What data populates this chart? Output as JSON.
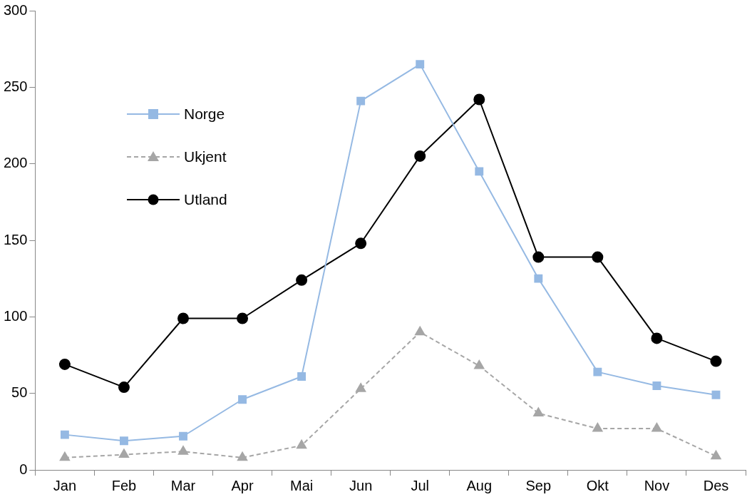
{
  "chart_data": {
    "type": "line",
    "categories": [
      "Jan",
      "Feb",
      "Mar",
      "Apr",
      "Mai",
      "Jun",
      "Jul",
      "Aug",
      "Sep",
      "Okt",
      "Nov",
      "Des"
    ],
    "series": [
      {
        "name": "Norge",
        "color": "#95b9e3",
        "marker": "square",
        "line_style": "solid",
        "values": [
          23,
          19,
          22,
          46,
          61,
          241,
          265,
          195,
          125,
          64,
          55,
          49
        ]
      },
      {
        "name": "Ukjent",
        "color": "#a6a6a6",
        "marker": "triangle",
        "line_style": "dashed",
        "values": [
          8,
          10,
          12,
          8,
          16,
          53,
          90,
          68,
          37,
          27,
          27,
          9
        ]
      },
      {
        "name": "Utland",
        "color": "#000000",
        "marker": "circle",
        "line_style": "solid",
        "values": [
          69,
          54,
          99,
          99,
          124,
          148,
          205,
          242,
          139,
          139,
          86,
          71
        ]
      }
    ],
    "ylim": [
      0,
      300
    ],
    "yticks": [
      0,
      50,
      100,
      150,
      200,
      250,
      300
    ],
    "grid": false,
    "legend": "top left"
  }
}
